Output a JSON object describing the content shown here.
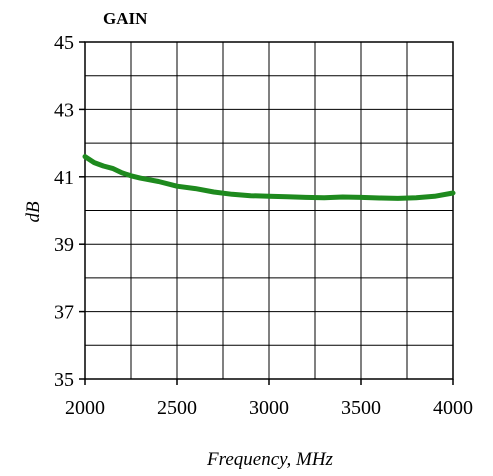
{
  "chart_data": {
    "type": "line",
    "title": "GAIN",
    "xlabel": "Frequency, MHz",
    "ylabel": "dB",
    "xlim": [
      2000,
      4000
    ],
    "ylim": [
      35,
      45
    ],
    "xticks": [
      2000,
      2500,
      3000,
      3500,
      4000
    ],
    "yticks": [
      35,
      37,
      39,
      41,
      43,
      45
    ],
    "x_minor_step": 250,
    "y_minor_step": 1,
    "grid": true,
    "legend": "none",
    "series": [
      {
        "color": "#1e8a1e",
        "x": [
          2000,
          2050,
          2100,
          2150,
          2200,
          2250,
          2300,
          2400,
          2500,
          2600,
          2700,
          2800,
          2900,
          3000,
          3100,
          3200,
          3300,
          3400,
          3500,
          3600,
          3700,
          3800,
          3900,
          4000
        ],
        "y": [
          41.6,
          41.42,
          41.32,
          41.25,
          41.12,
          41.03,
          40.96,
          40.86,
          40.72,
          40.65,
          40.55,
          40.48,
          40.44,
          40.42,
          40.41,
          40.39,
          40.38,
          40.4,
          40.39,
          40.37,
          40.36,
          40.38,
          40.42,
          40.52
        ]
      }
    ]
  }
}
